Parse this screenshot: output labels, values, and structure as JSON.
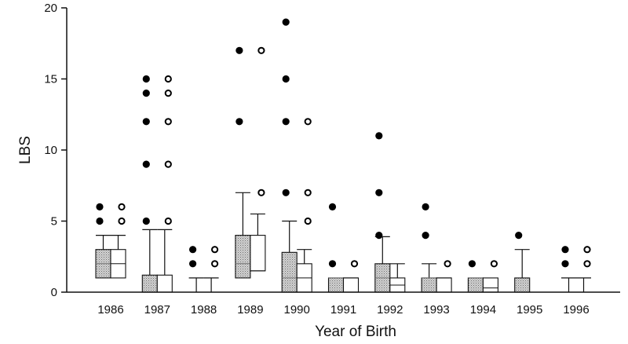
{
  "chart_data": {
    "type": "box",
    "xlabel": "Year of Birth",
    "ylabel": "LBS",
    "ylim": [
      0,
      20
    ],
    "yticks": [
      0,
      5,
      10,
      15,
      20
    ],
    "categories": [
      "1986",
      "1987",
      "1988",
      "1989",
      "1990",
      "1991",
      "1992",
      "1993",
      "1994",
      "1995",
      "1996"
    ],
    "grid": false,
    "colors": {
      "filled_box": "#bdbdbd",
      "open_box": "#ffffff",
      "line": "#111111"
    },
    "series": [
      {
        "marker": "filled",
        "boxes": [
          {
            "q1": 1,
            "median": 2,
            "q3": 3,
            "whisker_high": 4,
            "outliers": [
              5,
              6
            ]
          },
          {
            "q1": 0,
            "median": 0,
            "q3": 1.2,
            "whisker_high": 4.4,
            "outliers": [
              5,
              9,
              12,
              14,
              15
            ]
          },
          {
            "q1": 0,
            "median": 0,
            "q3": 0,
            "whisker_high": 1,
            "outliers": [
              2,
              3
            ]
          },
          {
            "q1": 1,
            "median": 2,
            "q3": 4,
            "whisker_high": 7,
            "outliers": [
              12,
              17
            ]
          },
          {
            "q1": 0,
            "median": 1,
            "q3": 2.8,
            "whisker_high": 5,
            "outliers": [
              7,
              12,
              15,
              19
            ]
          },
          {
            "q1": 0,
            "median": 1,
            "q3": 1,
            "whisker_high": 1,
            "outliers": [
              2,
              6
            ]
          },
          {
            "q1": 0,
            "median": 1,
            "q3": 2,
            "whisker_high": 3.9,
            "outliers": [
              4,
              7,
              11
            ]
          },
          {
            "q1": 0,
            "median": 1,
            "q3": 1,
            "whisker_high": 2,
            "outliers": [
              4,
              6
            ]
          },
          {
            "q1": 0,
            "median": 1,
            "q3": 1,
            "whisker_high": 1,
            "outliers": [
              2
            ]
          },
          {
            "q1": 0,
            "median": 0,
            "q3": 1,
            "whisker_high": 3,
            "outliers": [
              4
            ]
          },
          {
            "q1": 0,
            "median": 0,
            "q3": 0,
            "whisker_high": 1,
            "outliers": [
              2,
              3
            ]
          }
        ]
      },
      {
        "marker": "open",
        "boxes": [
          {
            "q1": 1,
            "median": 2,
            "q3": 3,
            "whisker_high": 4,
            "outliers": [
              5,
              6
            ]
          },
          {
            "q1": 0,
            "median": 0,
            "q3": 1.2,
            "whisker_high": 4.4,
            "outliers": [
              5,
              9,
              12,
              14,
              15
            ]
          },
          {
            "q1": 0,
            "median": 0,
            "q3": 0,
            "whisker_high": 1,
            "outliers": [
              2,
              3
            ]
          },
          {
            "q1": 1.5,
            "median": 1.5,
            "q3": 4,
            "whisker_high": 5.5,
            "outliers": [
              7,
              17
            ]
          },
          {
            "q1": 0,
            "median": 1,
            "q3": 2,
            "whisker_high": 3,
            "outliers": [
              5,
              7,
              12
            ]
          },
          {
            "q1": 0,
            "median": 1,
            "q3": 1,
            "whisker_high": 1,
            "outliers": [
              2
            ]
          },
          {
            "q1": 0,
            "median": 0.5,
            "q3": 1,
            "whisker_high": 2,
            "outliers": []
          },
          {
            "q1": 0,
            "median": 1,
            "q3": 1,
            "whisker_high": 1,
            "outliers": [
              2
            ]
          },
          {
            "q1": 0,
            "median": 0.3,
            "q3": 1,
            "whisker_high": 1,
            "outliers": [
              2
            ]
          },
          {
            "q1": 0,
            "median": 0,
            "q3": 0,
            "whisker_high": 0,
            "outliers": []
          },
          {
            "q1": 0,
            "median": 0,
            "q3": 0,
            "whisker_high": 1,
            "outliers": [
              2,
              3
            ]
          }
        ]
      }
    ]
  }
}
